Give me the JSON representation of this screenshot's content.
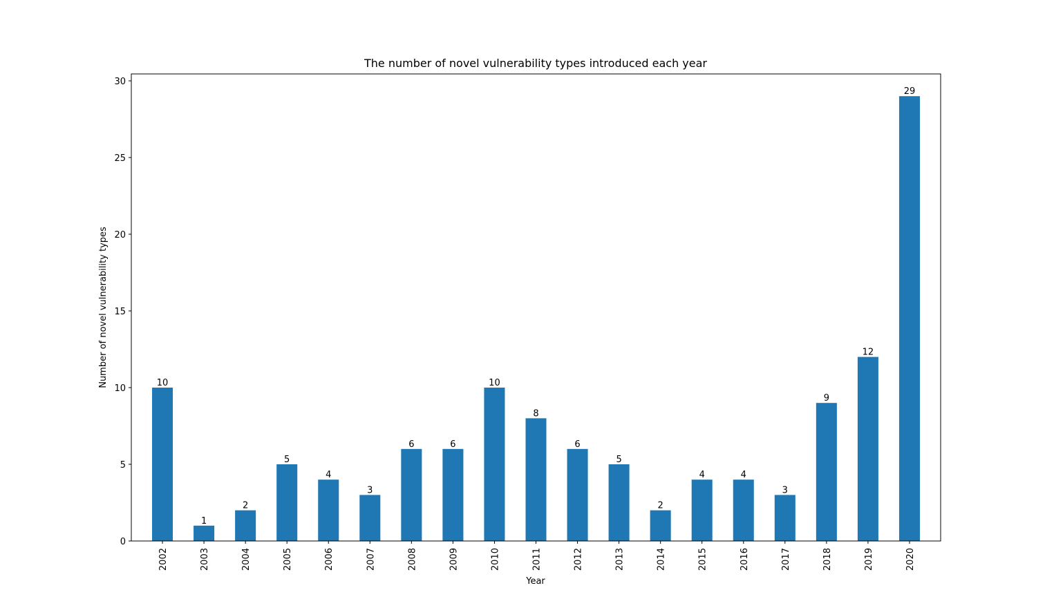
{
  "chart_data": {
    "type": "bar",
    "title": "The number of novel vulnerability types introduced each year",
    "xlabel": "Year",
    "ylabel": "Number of novel vulnerability types",
    "categories": [
      "2002",
      "2003",
      "2004",
      "2005",
      "2006",
      "2007",
      "2008",
      "2009",
      "2010",
      "2011",
      "2012",
      "2013",
      "2014",
      "2015",
      "2016",
      "2017",
      "2018",
      "2019",
      "2020"
    ],
    "values": [
      10,
      1,
      2,
      5,
      4,
      3,
      6,
      6,
      10,
      8,
      6,
      5,
      2,
      4,
      4,
      3,
      9,
      12,
      29
    ],
    "ylim": [
      0,
      30.45
    ],
    "yticks": [
      0,
      5,
      10,
      15,
      20,
      25,
      30
    ],
    "grid": false,
    "legend": "none",
    "bar_color": "#1f77b4",
    "data_labels": true
  }
}
